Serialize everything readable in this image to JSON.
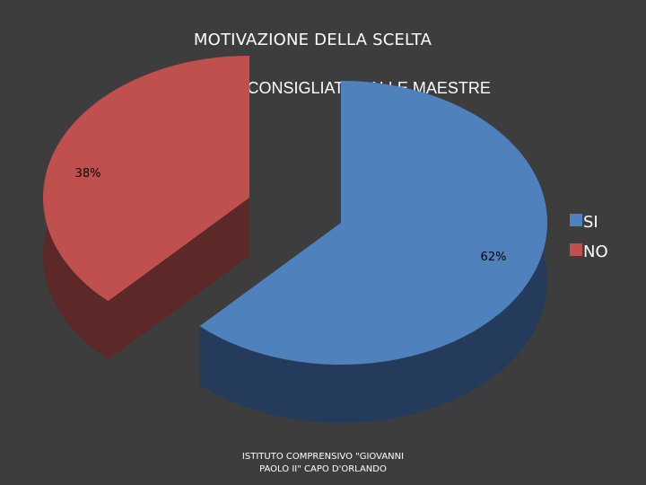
{
  "slide": {
    "title": "MOTIVAZIONE DELLA SCELTA",
    "footer_line1": "ISTITUTO COMPRENSIVO \"GIOVANNI",
    "footer_line2": "PAOLO II\" CAPO D'ORLANDO"
  },
  "chart_data": {
    "type": "pie",
    "title": "E' STATA CONSIGLIATA DALLE MAESTRE",
    "legend_position": "right",
    "three_d": true,
    "exploded": true,
    "series": [
      {
        "name": "SI",
        "value": 62,
        "label": "62%",
        "color": "#4f81bd",
        "side_color": "#243b5c"
      },
      {
        "name": "NO",
        "value": 38,
        "label": "38%",
        "color": "#c0504d",
        "side_color": "#5c2828"
      }
    ]
  }
}
